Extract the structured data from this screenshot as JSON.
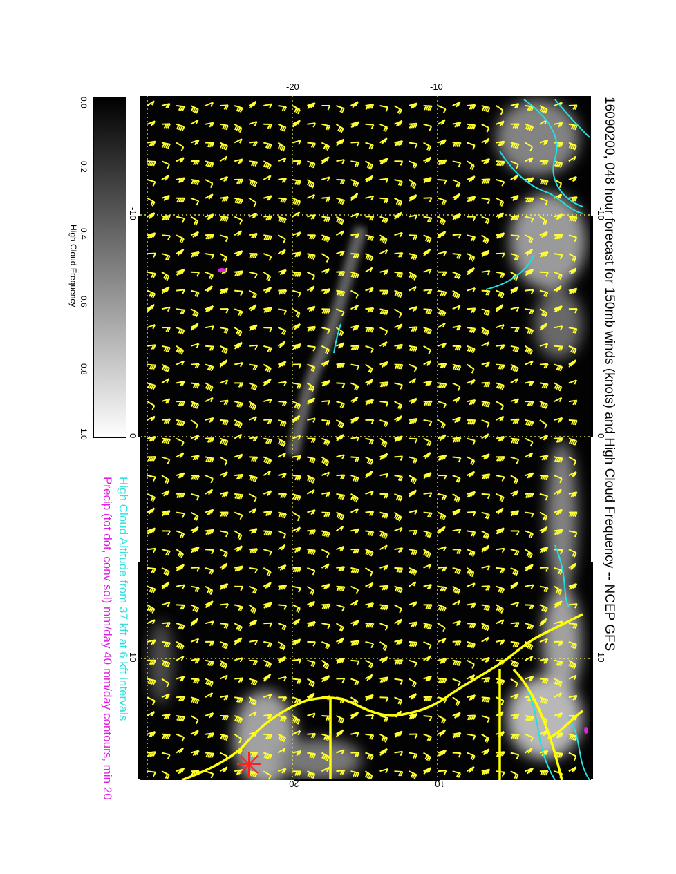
{
  "title": "16090200, 048 hour forecast for 150mb winds (knots) and High Cloud Frequency -- NCEP GFS",
  "subtitle_cloud_altitude": "High Cloud Altitude from 37 kft at 6 kft intervals",
  "subtitle_precip": "Precip (tot dot, conv sol) mm/day 40 mm/day contours, min 20",
  "colorbar": {
    "label": "High Cloud Frequency",
    "ticks": [
      "0.0",
      "0.2",
      "0.4",
      "0.6",
      "0.8",
      "1.0"
    ],
    "range": [
      0.0,
      1.0
    ],
    "colors": [
      "#000000",
      "#ffffff"
    ]
  },
  "axes": {
    "top_ticks": [
      "-20",
      "-10"
    ],
    "bottom_ticks": [
      "-20",
      "-10"
    ],
    "left_ticks": [
      "-10",
      "0",
      "10"
    ],
    "right_ticks": [
      "-10",
      "0",
      "10"
    ]
  },
  "colors": {
    "wind_barbs": "#ffff33",
    "coastline": "#ffff00",
    "cloud_altitude_contour": "#22e0e0",
    "precip": "#e020e0",
    "marker": "#ff2020",
    "gridline": "#ffff66"
  },
  "icons": {
    "marker": "red-star-marker-icon"
  }
}
